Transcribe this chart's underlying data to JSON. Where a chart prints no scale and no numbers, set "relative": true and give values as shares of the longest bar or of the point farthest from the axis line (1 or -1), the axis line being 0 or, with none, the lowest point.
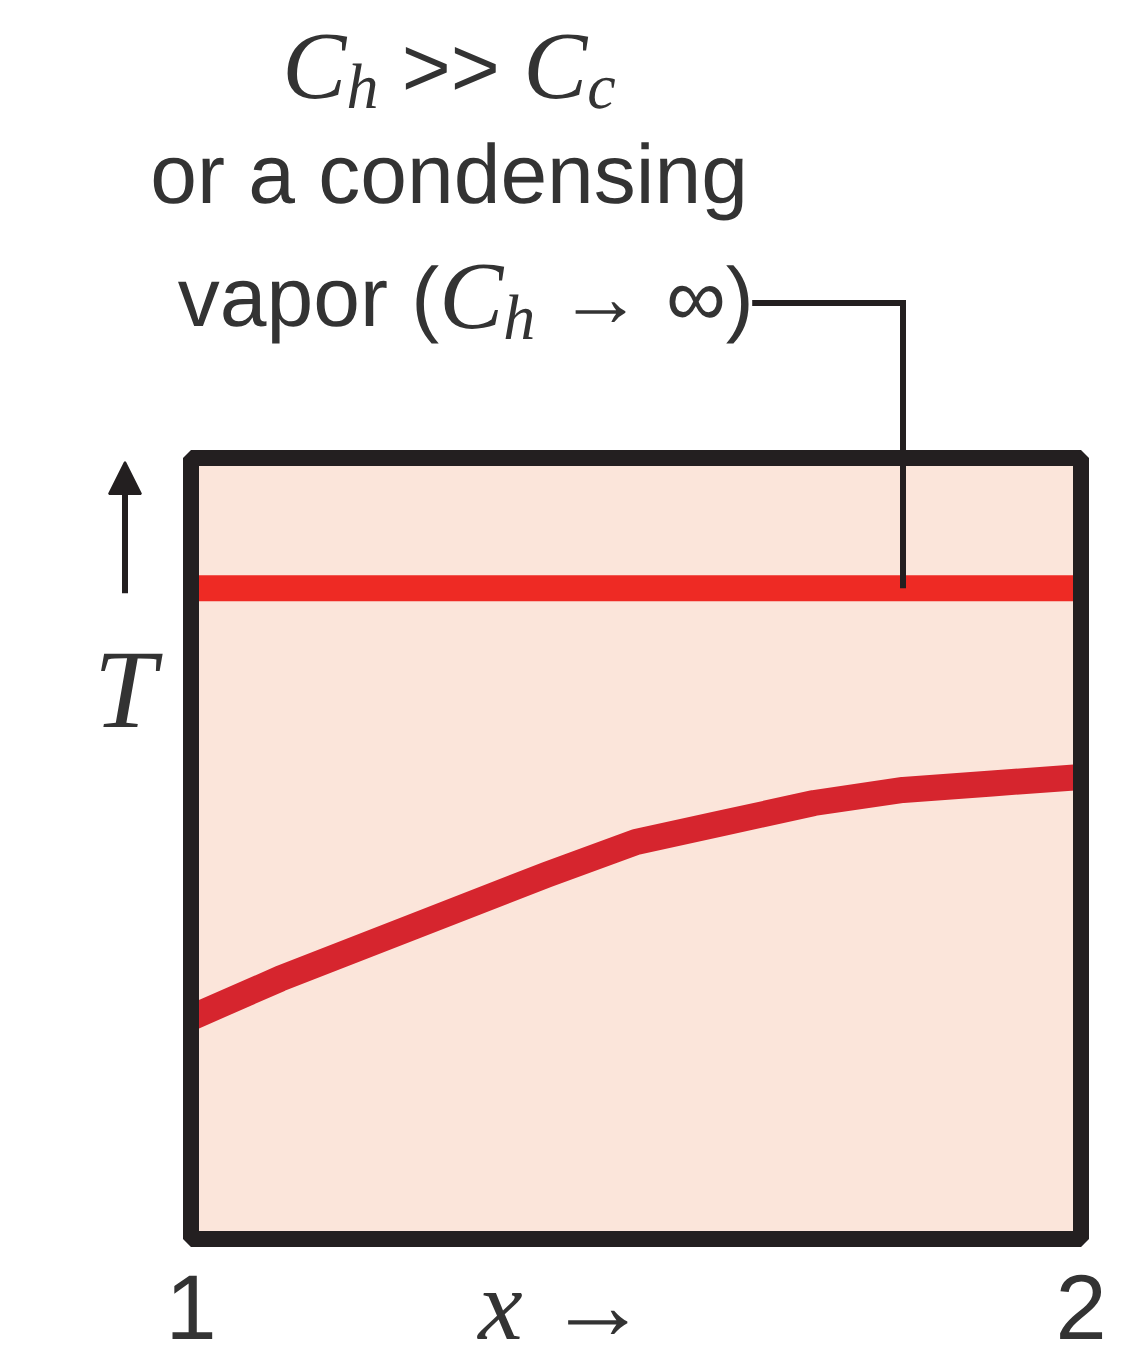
{
  "chart_data": {
    "type": "line",
    "relative": true,
    "xlabel": "x →",
    "ylabel": "T",
    "xlim": [
      1,
      2
    ],
    "xticks": [
      1,
      2
    ],
    "series": [
      {
        "color": "#ee2a24",
        "x": [
          1,
          2
        ],
        "values": [
          1,
          1
        ]
      },
      {
        "color": "#d6252e",
        "x": [
          1,
          1.1,
          1.25,
          1.4,
          1.5,
          1.6,
          1.7,
          1.8,
          1.9,
          2
        ],
        "values": [
          0.34,
          0.4,
          0.48,
          0.56,
          0.61,
          0.64,
          0.67,
          0.69,
          0.7,
          0.71
        ]
      }
    ],
    "annotations": [
      "C$_{h}$ >> C$_{c}$\nor a condensing\nvapor (C$_{h}$ → ∞)"
    ]
  }
}
